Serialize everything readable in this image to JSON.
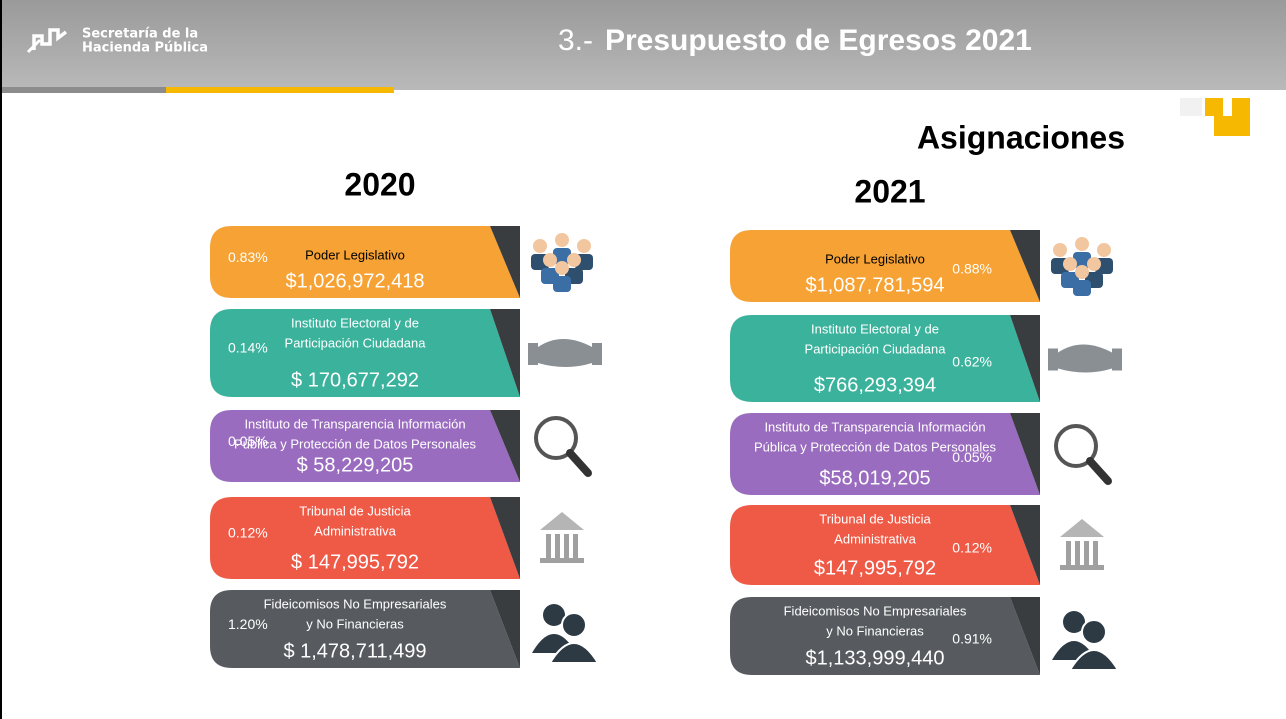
{
  "header": {
    "logo_lines": [
      "Secretaría de la",
      "Hacienda Pública"
    ],
    "title_prefix": "3.-",
    "title": "Presupuesto de Egresos  2021"
  },
  "subtitle": "Asignaciones",
  "columns": [
    {
      "year": "2020",
      "items": [
        {
          "label": [
            "Poder Legislativo"
          ],
          "percent": "0.83%",
          "amount": "$1,026,972,418"
        },
        {
          "label": [
            "Instituto Electoral y de",
            "Participación Ciudadana"
          ],
          "percent": "0.14%",
          "amount": "$ 170,677,292"
        },
        {
          "label": [
            "Instituto de Transparencia  Información",
            "Pública y Protección de Datos Personales"
          ],
          "percent": "0.05%",
          "amount": "$ 58,229,205"
        },
        {
          "label": [
            "Tribunal de Justicia",
            "Administrativa"
          ],
          "percent": "0.12%",
          "amount": "$ 147,995,792"
        },
        {
          "label": [
            "Fideicomisos No Empresariales",
            "y No Financieras"
          ],
          "percent": "1.20%",
          "amount": "$ 1,478,711,499"
        }
      ]
    },
    {
      "year": "2021",
      "items": [
        {
          "label": [
            "Poder Legislativo"
          ],
          "percent": "0.88%",
          "amount": "$1,087,781,594"
        },
        {
          "label": [
            "Instituto Electoral y de",
            "Participación Ciudadana"
          ],
          "percent": "0.62%",
          "amount": "$766,293,394"
        },
        {
          "label": [
            "Instituto de Transparencia  Información",
            "Pública y Protección de Datos Personales"
          ],
          "percent": "0.05%",
          "amount": "$58,019,205"
        },
        {
          "label": [
            "Tribunal de Justicia",
            "Administrativa"
          ],
          "percent": "0.12%",
          "amount": "$147,995,792"
        },
        {
          "label": [
            "Fideicomisos No Empresariales",
            "y No Financieras"
          ],
          "percent": "0.91%",
          "amount": "$1,133,999,440"
        }
      ]
    }
  ]
}
